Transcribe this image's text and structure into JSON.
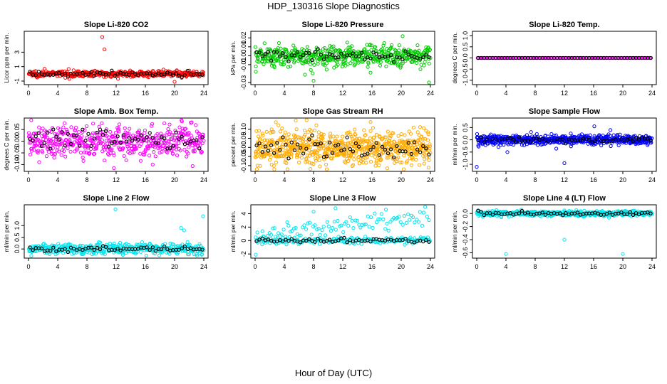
{
  "title": "HDP_130316  Slope Diagnostics",
  "xlabel": "Hour of Day (UTC)",
  "chart_data": [
    {
      "type": "scatter",
      "title": "Slope Li-820 CO2",
      "ylabel": "Licor ppm per min.",
      "color": "#ff0000",
      "xlim": [
        0,
        24
      ],
      "ylim": [
        -1.2,
        5.6
      ],
      "xticks": [
        0,
        4,
        8,
        12,
        16,
        20,
        24
      ],
      "yticks": [
        -1,
        1,
        3
      ],
      "ytick_labels": [
        "-1",
        "1",
        "3"
      ],
      "noise": {
        "main": 0.2,
        "black": 0.15,
        "mainCount": 420,
        "blackCount": 60
      },
      "outliers": [
        {
          "x": 10.1,
          "y": 5.1
        },
        {
          "x": 10.4,
          "y": 3.4
        },
        {
          "x": 2.2,
          "y": 0.7
        },
        {
          "x": 20.3,
          "y": 0.5
        },
        {
          "x": 20.0,
          "y": -1.1
        }
      ]
    },
    {
      "type": "scatter",
      "title": "Slope Li-820 Pressure",
      "ylabel": "kPa per min.",
      "color": "#00cc00",
      "xlim": [
        0,
        24
      ],
      "ylim": [
        -0.03,
        0.025
      ],
      "xticks": [
        0,
        4,
        8,
        12,
        16,
        20,
        24
      ],
      "yticks": [
        -0.03,
        -0.01,
        0,
        0.01,
        0.02
      ],
      "ytick_labels": [
        "-0.03",
        "-0.01",
        "0.00",
        "0.01",
        "0.02"
      ],
      "noise": {
        "main": 0.006,
        "black": 0.003,
        "mainCount": 520,
        "blackCount": 60
      },
      "outliers": [
        {
          "x": 20.2,
          "y": 0.022
        },
        {
          "x": 1.3,
          "y": 0.014
        },
        {
          "x": 0.1,
          "y": -0.018
        },
        {
          "x": 8.0,
          "y": -0.028
        },
        {
          "x": 23.8,
          "y": -0.03
        },
        {
          "x": 15.8,
          "y": -0.019
        }
      ]
    },
    {
      "type": "scatter",
      "title": "Slope Li-820 Temp.",
      "ylabel": "degrees C per min.",
      "color": "#ff00ff",
      "xlim": [
        0,
        24
      ],
      "ylim": [
        -1.1,
        1.1
      ],
      "xticks": [
        0,
        4,
        8,
        12,
        16,
        20,
        24
      ],
      "yticks": [
        -1,
        -0.5,
        0,
        0.5,
        1
      ],
      "ytick_labels": [
        "-1.0",
        "-0.5",
        "0.0",
        "0.5",
        "1.0"
      ],
      "noise": {
        "main": 0.0,
        "black": 0.0,
        "mainCount": 150,
        "blackCount": 60
      },
      "outliers": []
    },
    {
      "type": "scatter",
      "title": "Slope Amb. Box Temp.",
      "ylabel": "degrees C per min.",
      "color": "#ff00ff",
      "xlim": [
        0,
        24
      ],
      "ylim": [
        -0.12,
        0.09
      ],
      "xticks": [
        0,
        4,
        8,
        12,
        16,
        20,
        24
      ],
      "yticks": [
        -0.1,
        -0.05,
        0,
        0.05
      ],
      "ytick_labels": [
        "-0.10",
        "-0.05",
        "0.00",
        "0.05"
      ],
      "noise": {
        "main": 0.035,
        "black": 0.025,
        "mainCount": 520,
        "blackCount": 60
      },
      "outliers": [
        {
          "x": 21.0,
          "y": 0.085
        },
        {
          "x": 11.7,
          "y": -0.115
        },
        {
          "x": 17.0,
          "y": -0.1
        }
      ]
    },
    {
      "type": "scatter",
      "title": "Slope Gas Stream RH",
      "ylabel": "percent per min.",
      "color": "#ffaa00",
      "xlim": [
        0,
        24
      ],
      "ylim": [
        -0.12,
        0.15
      ],
      "xticks": [
        0,
        4,
        8,
        12,
        16,
        20,
        24
      ],
      "yticks": [
        -0.1,
        -0.05,
        0,
        0.05,
        0.1
      ],
      "ytick_labels": [
        "-0.10",
        "-0.05",
        "0.00",
        "0.05",
        "0.10"
      ],
      "noise": {
        "main": 0.045,
        "black": 0.03,
        "mainCount": 700,
        "blackCount": 60
      },
      "outliers": [
        {
          "x": 15.8,
          "y": 0.14
        },
        {
          "x": 18.1,
          "y": -0.115
        }
      ]
    },
    {
      "type": "scatter",
      "title": "Slope Sample Flow",
      "ylabel": "ml/min per min.",
      "color": "#0000ff",
      "xlim": [
        0,
        24
      ],
      "ylim": [
        -1.2,
        0.8
      ],
      "xticks": [
        0,
        4,
        8,
        12,
        16,
        20,
        24
      ],
      "yticks": [
        -1,
        -0.5,
        0,
        0.5
      ],
      "ytick_labels": [
        "-1.0",
        "-0.5",
        "0.0",
        "0.5"
      ],
      "noise": {
        "main": 0.1,
        "black": 0.06,
        "mainCount": 600,
        "blackCount": 60
      },
      "outliers": [
        {
          "x": 0.0,
          "y": -1.1
        },
        {
          "x": 12.0,
          "y": -0.95
        },
        {
          "x": 16.1,
          "y": 0.55
        },
        {
          "x": 4.2,
          "y": -0.5
        },
        {
          "x": 18.3,
          "y": 0.4
        }
      ]
    },
    {
      "type": "scatter",
      "title": "Slope Line 2 Flow",
      "ylabel": "ml/min per min.",
      "color": "#00e5ee",
      "xlim": [
        0,
        24
      ],
      "ylim": [
        -0.3,
        1.8
      ],
      "xticks": [
        0,
        4,
        8,
        12,
        16,
        20,
        24
      ],
      "yticks": [
        0,
        0.5,
        1
      ],
      "ytick_labels": [
        "0.0",
        "0.5",
        "1.0"
      ],
      "noise": {
        "main": 0.12,
        "black": 0.05,
        "mainCount": 420,
        "blackCount": 60
      },
      "outliers": [
        {
          "x": 11.9,
          "y": 1.7
        },
        {
          "x": 23.9,
          "y": 1.4
        },
        {
          "x": 21.3,
          "y": 0.8
        },
        {
          "x": 20.9,
          "y": 0.9
        }
      ]
    },
    {
      "type": "scatter",
      "title": "Slope Line 3 Flow",
      "ylabel": "ml/min per min.",
      "color": "#00e5ee",
      "xlim": [
        0,
        24
      ],
      "ylim": [
        -2.3,
        5.0
      ],
      "xticks": [
        0,
        4,
        8,
        12,
        16,
        20,
        24
      ],
      "yticks": [
        -2,
        0,
        2,
        4
      ],
      "ytick_labels": [
        "-2",
        "0",
        "2",
        "4"
      ],
      "noise": {
        "main": 0.25,
        "black": 0.15,
        "mainCount": 300,
        "blackCount": 60
      },
      "upper_band": true,
      "outliers": [
        {
          "x": 0.1,
          "y": -2.1
        },
        {
          "x": 11.0,
          "y": 4.8
        },
        {
          "x": 17.9,
          "y": 4.6
        },
        {
          "x": 8.0,
          "y": 4.3
        }
      ]
    },
    {
      "type": "scatter",
      "title": "Slope Line 4 (LT) Flow",
      "ylabel": "ml/min per min.",
      "color": "#00e5ee",
      "xlim": [
        0,
        24
      ],
      "ylim": [
        -0.65,
        0.1
      ],
      "xticks": [
        0,
        4,
        8,
        12,
        16,
        20,
        24
      ],
      "yticks": [
        -0.6,
        -0.4,
        -0.2,
        0
      ],
      "ytick_labels": [
        "-0.6",
        "-0.4",
        "-0.2",
        "0.0"
      ],
      "noise": {
        "main": 0.02,
        "black": 0.015,
        "mainCount": 520,
        "blackCount": 60
      },
      "outliers": [
        {
          "x": 4.0,
          "y": -0.62
        },
        {
          "x": 20.0,
          "y": -0.62
        },
        {
          "x": 12.0,
          "y": -0.4
        }
      ]
    }
  ]
}
